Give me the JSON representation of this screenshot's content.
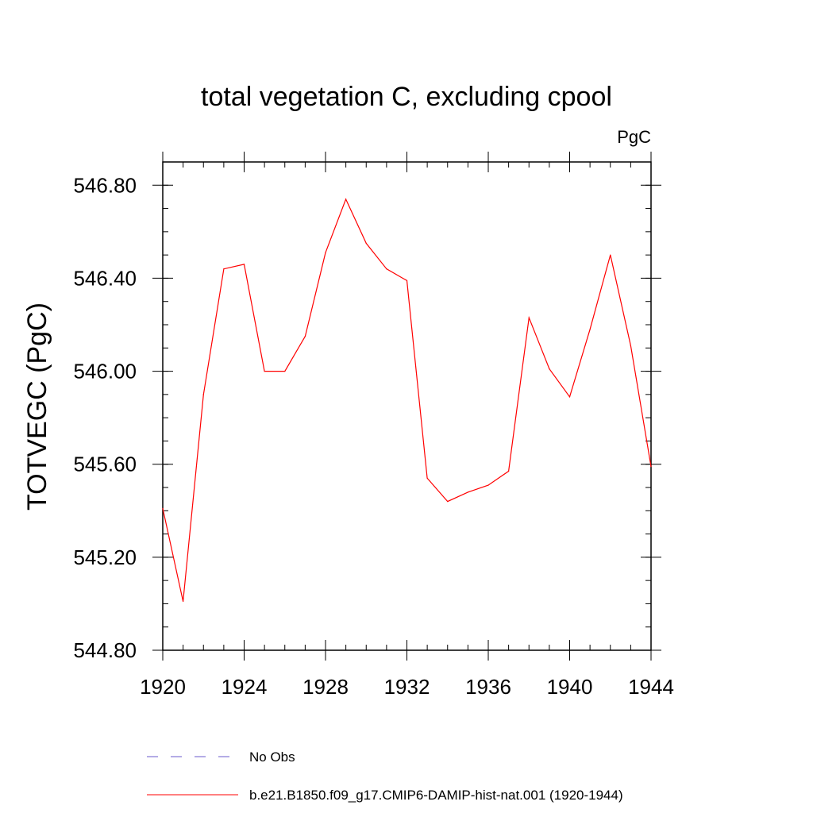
{
  "chart_data": {
    "type": "line",
    "title": "total vegetation C, excluding cpool",
    "units_label": "PgC",
    "xlabel": "",
    "ylabel": "TOTVEGC  (PgC)",
    "xlim": [
      1920,
      1944
    ],
    "ylim": [
      544.8,
      546.9
    ],
    "x_ticks": [
      1920,
      1924,
      1928,
      1932,
      1936,
      1940,
      1944
    ],
    "x_tick_labels": [
      "1920",
      "1924",
      "1928",
      "1932",
      "1936",
      "1940",
      "1944"
    ],
    "y_ticks": [
      544.8,
      545.2,
      545.6,
      546.0,
      546.4,
      546.8
    ],
    "y_tick_labels": [
      "544.80",
      "545.20",
      "545.60",
      "546.00",
      "546.40",
      "546.80"
    ],
    "grid": false,
    "legend_position": "bottom",
    "legend": [
      {
        "label": "No Obs",
        "color": "#6a5acd",
        "style": "dashed"
      },
      {
        "label": "b.e21.B1850.f09_g17.CMIP6-DAMIP-hist-nat.001 (1920-1944)",
        "color": "#ff0000",
        "style": "solid"
      }
    ],
    "series": [
      {
        "name": "b.e21.B1850.f09_g17.CMIP6-DAMIP-hist-nat.001 (1920-1944)",
        "color": "#ff0000",
        "x": [
          1920,
          1921,
          1922,
          1923,
          1924,
          1925,
          1926,
          1927,
          1928,
          1929,
          1930,
          1931,
          1932,
          1933,
          1934,
          1935,
          1936,
          1937,
          1938,
          1939,
          1940,
          1941,
          1942,
          1943,
          1944
        ],
        "y": [
          545.41,
          545.01,
          545.9,
          546.44,
          546.46,
          546.0,
          546.0,
          546.15,
          546.51,
          546.74,
          546.55,
          546.44,
          546.39,
          545.54,
          545.44,
          545.48,
          545.51,
          545.57,
          546.23,
          546.01,
          545.89,
          546.18,
          546.5,
          546.11,
          545.59
        ]
      }
    ]
  }
}
